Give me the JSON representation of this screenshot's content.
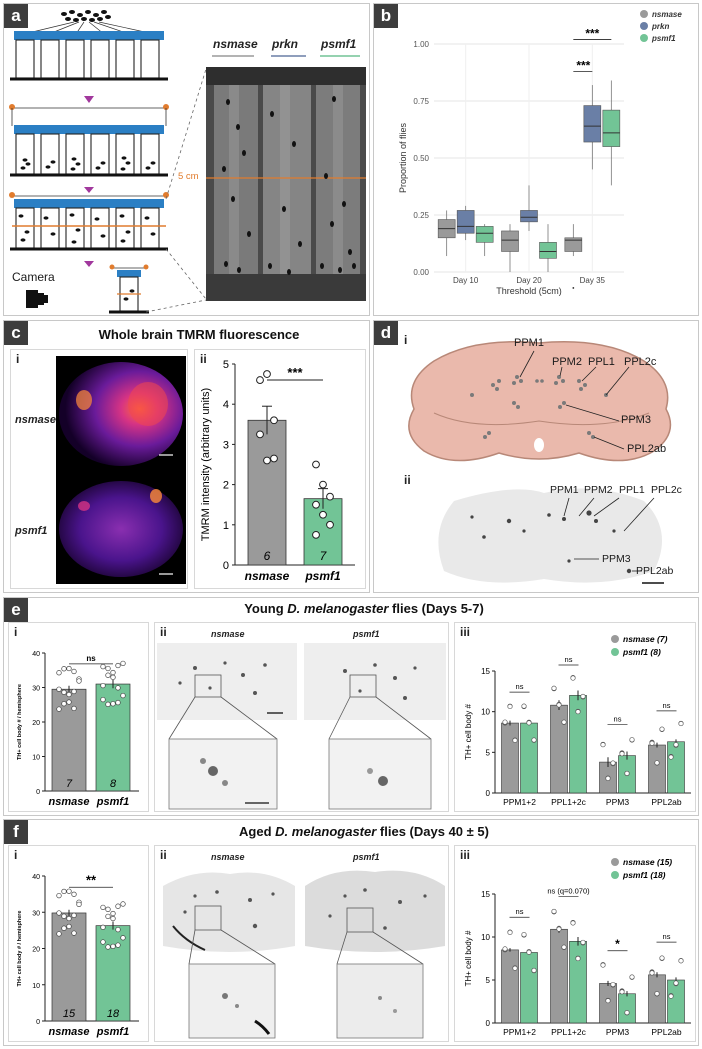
{
  "panels": {
    "a": {
      "label": "a",
      "camera_label": "Camera",
      "column_labels": [
        "nsmase",
        "prkn",
        "psmf1"
      ],
      "line_label": "5 cm"
    },
    "b": {
      "label": "b",
      "chart_data": {
        "type": "box",
        "categories": [
          "Day 10",
          "Day 20",
          "Day 35"
        ],
        "xlabel": "Threshold (5cm)",
        "ylabel": "Proportion of flies",
        "ylim": [
          0,
          1.0
        ],
        "yticks": [
          "0.00",
          "0.25",
          "0.50",
          "0.75",
          "1.00"
        ],
        "legend_position": "top-right",
        "series": [
          {
            "name": "nsmase",
            "color": "#9a9a9a",
            "boxes": [
              {
                "min": 0.07,
                "q1": 0.15,
                "median": 0.19,
                "q3": 0.23,
                "max": 0.27
              },
              {
                "min": 0.0,
                "q1": 0.09,
                "median": 0.14,
                "q3": 0.18,
                "max": 0.21
              },
              {
                "min": 0.07,
                "q1": 0.09,
                "median": 0.14,
                "q3": 0.15,
                "max": 0.21,
                "outliers": [
                  -0.07
                ]
              }
            ]
          },
          {
            "name": "prkn",
            "color": "#6a7fa6",
            "boxes": [
              {
                "min": 0.14,
                "q1": 0.17,
                "median": 0.2,
                "q3": 0.27,
                "max": 0.29
              },
              {
                "min": 0.18,
                "q1": 0.22,
                "median": 0.24,
                "q3": 0.27,
                "max": 0.38
              },
              {
                "min": 0.45,
                "q1": 0.57,
                "median": 0.64,
                "q3": 0.73,
                "max": 0.82
              }
            ]
          },
          {
            "name": "psmf1",
            "color": "#72c496",
            "boxes": [
              {
                "min": 0.07,
                "q1": 0.13,
                "median": 0.17,
                "q3": 0.2,
                "max": 0.21
              },
              {
                "min": 0.0,
                "q1": 0.06,
                "median": 0.09,
                "q3": 0.13,
                "max": 0.21
              },
              {
                "min": 0.38,
                "q1": 0.55,
                "median": 0.61,
                "q3": 0.71,
                "max": 0.84
              }
            ]
          }
        ],
        "annotations": [
          "***",
          "***"
        ]
      }
    },
    "c": {
      "label": "c",
      "title": "Whole brain TMRM fluorescence",
      "sub_i": "i",
      "sub_ii": "ii",
      "row_labels": [
        "nsmase",
        "psmf1"
      ],
      "chart_data": {
        "type": "bar",
        "categories": [
          "nsmase",
          "psmf1"
        ],
        "values": [
          3.6,
          1.65
        ],
        "sem": [
          0.35,
          0.25
        ],
        "n": [
          "6",
          "7"
        ],
        "colors": [
          "#9a9a9a",
          "#72c496"
        ],
        "ylabel": "TMRM intensity (arbitrary units)",
        "ylim": [
          0,
          5
        ],
        "yticks": [
          "0",
          "1",
          "2",
          "3",
          "4",
          "5"
        ],
        "points": [
          [
            4.6,
            4.75,
            3.6,
            3.25,
            2.6,
            2.65
          ],
          [
            2.5,
            2.0,
            1.7,
            1.5,
            1.25,
            1.0,
            0.75
          ]
        ],
        "significance": "***"
      }
    },
    "d": {
      "label": "d",
      "sub_i": "i",
      "sub_ii": "ii",
      "cluster_labels_i": [
        "PPM1",
        "PPM2",
        "PPL1",
        "PPL2c",
        "PPM3",
        "PPL2ab"
      ],
      "cluster_labels_ii": [
        "PPM1",
        "PPM2",
        "PPL1",
        "PPL2c",
        "PPM3",
        "PPL2ab"
      ]
    },
    "e": {
      "label": "e",
      "title": "Young D. melanogaster flies (Days 5-7)",
      "title_prefix": "Young ",
      "title_species": "D. melanogaster",
      "title_suffix": " flies (Days 5-7)",
      "sub_i": "i",
      "sub_ii": "ii",
      "sub_iii": "iii",
      "micro_labels": [
        "nsmase",
        "psmf1"
      ],
      "chart_i": {
        "type": "bar",
        "categories": [
          "nsmase",
          "psmf1"
        ],
        "values": [
          29.5,
          31.0
        ],
        "sem": [
          1.0,
          1.2
        ],
        "n": [
          "7",
          "8"
        ],
        "ylabel": "TH+ cell body # / hemisphere",
        "ylim": [
          0,
          40
        ],
        "yticks": [
          "0",
          "10",
          "20",
          "30",
          "40"
        ],
        "significance": "ns"
      },
      "chart_iii": {
        "type": "bar",
        "categories": [
          "PPM1+2",
          "PPL1+2c",
          "PPM3",
          "PPL2ab"
        ],
        "ylabel": "TH+ cell body #",
        "ylim": [
          0,
          15
        ],
        "yticks": [
          "0",
          "5",
          "10",
          "15"
        ],
        "legend_position": "top-right",
        "series": [
          {
            "name": "nsmase (7)",
            "color": "#9a9a9a",
            "values": [
              8.6,
              10.8,
              3.8,
              5.9
            ],
            "sem": [
              0.3,
              0.6,
              0.6,
              0.3
            ]
          },
          {
            "name": "psmf1 (8)",
            "color": "#72c496",
            "values": [
              8.6,
              12.0,
              4.6,
              6.3
            ],
            "sem": [
              0.3,
              0.6,
              0.5,
              0.3
            ]
          }
        ],
        "significance": [
          "ns",
          "ns",
          "ns",
          "ns"
        ]
      }
    },
    "f": {
      "label": "f",
      "title": "Aged D. melanogaster flies (Days 40 ± 5)",
      "title_prefix": "Aged ",
      "title_species": "D. melanogaster",
      "title_suffix": " flies (Days 40 ± 5)",
      "sub_i": "i",
      "sub_ii": "ii",
      "sub_iii": "iii",
      "micro_labels": [
        "nsmase",
        "psmf1"
      ],
      "chart_i": {
        "type": "bar",
        "categories": [
          "nsmase",
          "psmf1"
        ],
        "values": [
          29.8,
          26.3
        ],
        "sem": [
          0.9,
          1.1
        ],
        "n": [
          "15",
          "18"
        ],
        "ylabel": "TH+ cell body # / hemisphere",
        "ylim": [
          0,
          40
        ],
        "yticks": [
          "0",
          "10",
          "20",
          "30",
          "40"
        ],
        "significance": "**"
      },
      "chart_iii": {
        "type": "bar",
        "categories": [
          "PPM1+2",
          "PPL1+2c",
          "PPM3",
          "PPL2ab"
        ],
        "ylabel": "TH+ cell body #",
        "ylim": [
          0,
          15
        ],
        "yticks": [
          "0",
          "5",
          "10",
          "15"
        ],
        "legend_position": "top-right",
        "series": [
          {
            "name": "nsmase (15)",
            "color": "#9a9a9a",
            "values": [
              8.5,
              10.9,
              4.6,
              5.6
            ],
            "sem": [
              0.2,
              0.4,
              0.3,
              0.3
            ]
          },
          {
            "name": "psmf1 (18)",
            "color": "#72c496",
            "values": [
              8.2,
              9.5,
              3.4,
              5.0
            ],
            "sem": [
              0.3,
              0.5,
              0.3,
              0.3
            ]
          }
        ],
        "significance": [
          "ns",
          "ns (q=0.070)",
          "*",
          "ns"
        ]
      }
    }
  }
}
